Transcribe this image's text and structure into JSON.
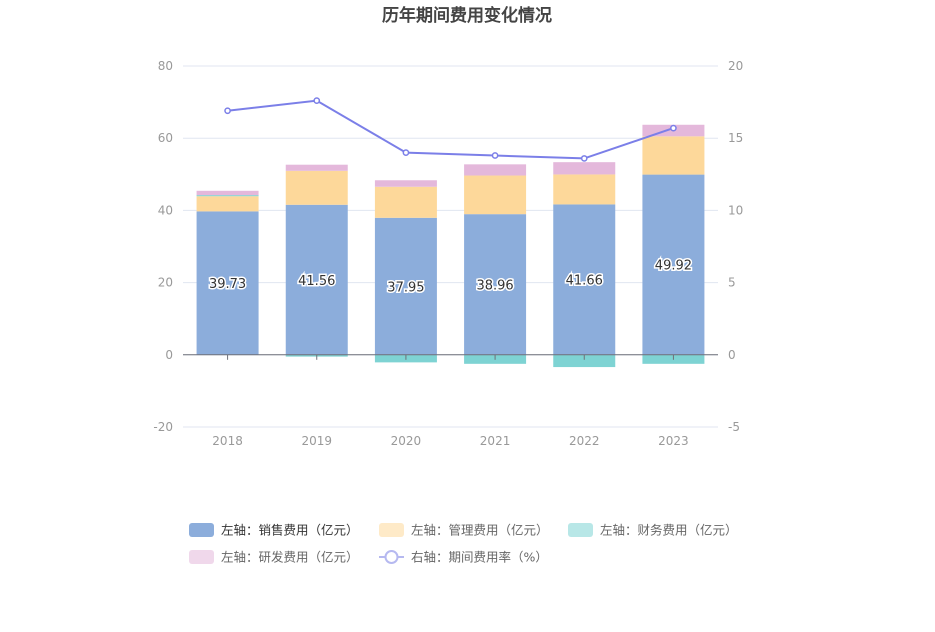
{
  "chart_data": {
    "type": "bar",
    "title": "历年期间费用变化情况",
    "categories": [
      "2018",
      "2019",
      "2020",
      "2021",
      "2022",
      "2023"
    ],
    "left_axis": {
      "min": -20,
      "max": 80,
      "ticks": [
        "80",
        "60",
        "40",
        "20",
        "0",
        "-20"
      ]
    },
    "right_axis": {
      "min": -5,
      "max": 20,
      "ticks": [
        "20",
        "15",
        "10",
        "5",
        "0",
        "-5"
      ]
    },
    "series": [
      {
        "name": "左轴：销售费用（亿元）",
        "axis": "left",
        "stack": true,
        "color": "#8caddb",
        "values": [
          39.73,
          41.56,
          37.95,
          38.96,
          41.66,
          49.92
        ],
        "labels": [
          "39.73",
          "41.56",
          "37.95",
          "38.96",
          "41.66",
          "49.92"
        ]
      },
      {
        "name": "左轴：管理费用（亿元）",
        "axis": "left",
        "stack": true,
        "color": "#fdd89a",
        "values": [
          4.2,
          9.4,
          8.6,
          10.7,
          8.3,
          10.6
        ]
      },
      {
        "name": "左轴：财务费用（亿元）",
        "axis": "left",
        "stack": true,
        "color": "#7ed3d3",
        "values": [
          0.3,
          -0.5,
          -2.1,
          -2.5,
          -3.4,
          -2.5
        ]
      },
      {
        "name": "左轴：研发费用（亿元）",
        "axis": "left",
        "stack": true,
        "color": "#e4b8db",
        "values": [
          1.2,
          1.7,
          1.8,
          3.1,
          3.4,
          3.2
        ]
      },
      {
        "name": "右轴：期间费用率（%）",
        "axis": "right",
        "type": "line",
        "color": "#7b7fe8",
        "values": [
          16.9,
          17.6,
          14.0,
          13.8,
          13.6,
          15.7
        ]
      }
    ]
  }
}
